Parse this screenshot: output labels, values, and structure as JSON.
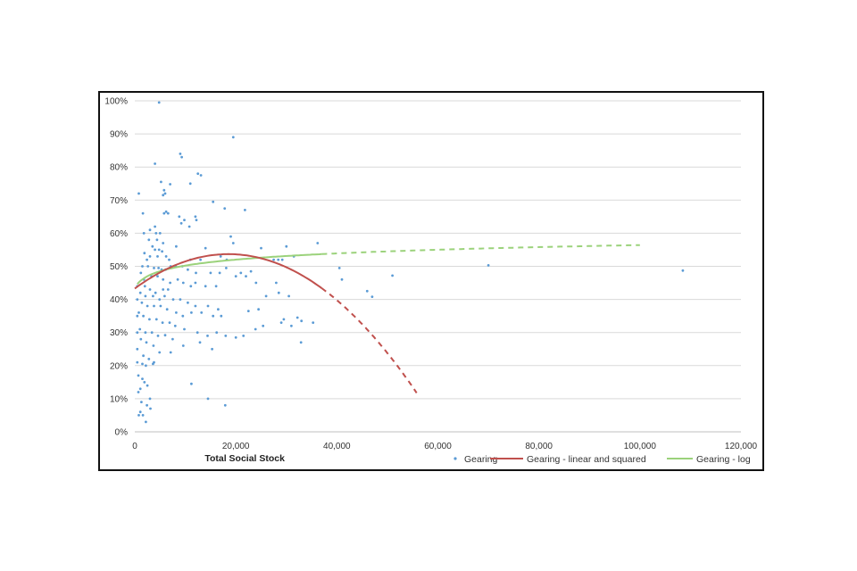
{
  "chart_data": {
    "type": "scatter",
    "title": "",
    "xlabel": "Total Social Stock",
    "ylabel": "",
    "xlim": [
      0,
      120000
    ],
    "ylim": [
      0,
      100
    ],
    "x_ticks": [
      "0",
      "20,000",
      "40,000",
      "60,000",
      "80,000",
      "100,000",
      "120,000"
    ],
    "y_ticks": [
      "0%",
      "10%",
      "20%",
      "30%",
      "40%",
      "50%",
      "60%",
      "70%",
      "80%",
      "90%",
      "100%"
    ],
    "grid": "horizontal",
    "legend_position": "bottom-right",
    "colors": {
      "points": "#5b9bd5",
      "quadratic": "#c0504d",
      "log": "#9bd27b"
    },
    "series": [
      {
        "name": "Gearing",
        "kind": "scatter",
        "points": [
          [
            4800,
            99.5
          ],
          [
            19500,
            89
          ],
          [
            9000,
            84
          ],
          [
            9300,
            83
          ],
          [
            4000,
            81
          ],
          [
            12500,
            78
          ],
          [
            13100,
            77.5
          ],
          [
            5200,
            75.5
          ],
          [
            5800,
            73
          ],
          [
            6000,
            72
          ],
          [
            5600,
            71.5
          ],
          [
            800,
            72
          ],
          [
            11000,
            75
          ],
          [
            7000,
            74.8
          ],
          [
            15500,
            69.5
          ],
          [
            17800,
            67.5
          ],
          [
            21800,
            67
          ],
          [
            1600,
            66
          ],
          [
            5800,
            66
          ],
          [
            6200,
            66.5
          ],
          [
            6600,
            66
          ],
          [
            8800,
            65
          ],
          [
            9800,
            64
          ],
          [
            12000,
            65
          ],
          [
            12200,
            64
          ],
          [
            10800,
            62
          ],
          [
            9200,
            63
          ],
          [
            4000,
            62
          ],
          [
            3000,
            61
          ],
          [
            4200,
            60
          ],
          [
            5000,
            60
          ],
          [
            1800,
            60
          ],
          [
            2800,
            58
          ],
          [
            4400,
            58
          ],
          [
            5600,
            57
          ],
          [
            19000,
            59
          ],
          [
            19500,
            57
          ],
          [
            25000,
            55.5
          ],
          [
            30000,
            56
          ],
          [
            36200,
            57
          ],
          [
            14000,
            55.5
          ],
          [
            8200,
            56
          ],
          [
            3500,
            56
          ],
          [
            4000,
            55
          ],
          [
            4800,
            55
          ],
          [
            5400,
            54.5
          ],
          [
            1900,
            54
          ],
          [
            3000,
            53
          ],
          [
            4500,
            53
          ],
          [
            6200,
            53
          ],
          [
            6800,
            52
          ],
          [
            2400,
            52
          ],
          [
            11000,
            52
          ],
          [
            13000,
            52
          ],
          [
            17000,
            53
          ],
          [
            18200,
            52
          ],
          [
            27500,
            52
          ],
          [
            28400,
            52
          ],
          [
            29200,
            52
          ],
          [
            31500,
            53
          ],
          [
            1500,
            50
          ],
          [
            2600,
            50
          ],
          [
            3800,
            49.5
          ],
          [
            4700,
            49.5
          ],
          [
            5300,
            49
          ],
          [
            6100,
            49
          ],
          [
            7100,
            50
          ],
          [
            8100,
            50
          ],
          [
            9400,
            50
          ],
          [
            10500,
            49
          ],
          [
            12100,
            48
          ],
          [
            15000,
            48
          ],
          [
            16800,
            48
          ],
          [
            18100,
            49.5
          ],
          [
            21000,
            48
          ],
          [
            23000,
            48.5
          ],
          [
            22000,
            47
          ],
          [
            24000,
            45
          ],
          [
            1200,
            48
          ],
          [
            1800,
            46
          ],
          [
            3300,
            47
          ],
          [
            4500,
            47
          ],
          [
            5600,
            46
          ],
          [
            7000,
            45
          ],
          [
            8500,
            46
          ],
          [
            9600,
            45
          ],
          [
            11100,
            44
          ],
          [
            12000,
            45
          ],
          [
            14000,
            44
          ],
          [
            16100,
            44
          ],
          [
            20000,
            47
          ],
          [
            40500,
            49.5
          ],
          [
            41000,
            46
          ],
          [
            51000,
            47.2
          ],
          [
            70000,
            50.3
          ],
          [
            108500,
            48.7
          ],
          [
            46000,
            42.5
          ],
          [
            47000,
            40.8
          ],
          [
            28000,
            45
          ],
          [
            2000,
            44
          ],
          [
            3000,
            43
          ],
          [
            4100,
            42
          ],
          [
            5600,
            43
          ],
          [
            6600,
            43
          ],
          [
            1100,
            42
          ],
          [
            2100,
            41
          ],
          [
            3600,
            41
          ],
          [
            4900,
            40
          ],
          [
            5900,
            41
          ],
          [
            7600,
            40
          ],
          [
            9000,
            40
          ],
          [
            10500,
            39
          ],
          [
            12000,
            38
          ],
          [
            14500,
            38
          ],
          [
            16500,
            37
          ],
          [
            26000,
            41
          ],
          [
            28500,
            42
          ],
          [
            30500,
            41
          ],
          [
            1400,
            39
          ],
          [
            2500,
            38
          ],
          [
            3800,
            38
          ],
          [
            5100,
            38
          ],
          [
            6400,
            37
          ],
          [
            8200,
            36
          ],
          [
            9500,
            35
          ],
          [
            11200,
            36
          ],
          [
            13200,
            36
          ],
          [
            15500,
            35
          ],
          [
            17100,
            35
          ],
          [
            22500,
            36.5
          ],
          [
            24500,
            37
          ],
          [
            29500,
            34
          ],
          [
            32200,
            34.5
          ],
          [
            33000,
            33.5
          ],
          [
            35300,
            33
          ],
          [
            800,
            36
          ],
          [
            1700,
            35
          ],
          [
            2900,
            34
          ],
          [
            4300,
            34
          ],
          [
            5500,
            33
          ],
          [
            6900,
            33
          ],
          [
            8000,
            32
          ],
          [
            9800,
            31
          ],
          [
            12400,
            30
          ],
          [
            14400,
            29
          ],
          [
            16200,
            30
          ],
          [
            18000,
            29
          ],
          [
            20000,
            28.5
          ],
          [
            21500,
            29
          ],
          [
            23900,
            31
          ],
          [
            25400,
            32
          ],
          [
            29000,
            33
          ],
          [
            31000,
            32
          ],
          [
            32900,
            27
          ],
          [
            1000,
            31
          ],
          [
            2100,
            30
          ],
          [
            3400,
            30
          ],
          [
            4600,
            29
          ],
          [
            6000,
            29.2
          ],
          [
            7500,
            28
          ],
          [
            9600,
            26
          ],
          [
            12900,
            27
          ],
          [
            15300,
            25
          ],
          [
            1200,
            28
          ],
          [
            2300,
            27
          ],
          [
            3700,
            26
          ],
          [
            4900,
            24
          ],
          [
            7100,
            24
          ],
          [
            1700,
            23
          ],
          [
            2800,
            22
          ],
          [
            3800,
            21
          ],
          [
            500,
            21
          ],
          [
            1500,
            20.5
          ],
          [
            2200,
            20
          ],
          [
            3600,
            20.5
          ],
          [
            11200,
            14.5
          ],
          [
            14500,
            10
          ],
          [
            17900,
            8
          ],
          [
            700,
            17
          ],
          [
            1500,
            16
          ],
          [
            1900,
            15
          ],
          [
            2500,
            14
          ],
          [
            1100,
            13
          ],
          [
            700,
            12
          ],
          [
            3000,
            10
          ],
          [
            1300,
            9
          ],
          [
            2400,
            8
          ],
          [
            1100,
            6
          ],
          [
            800,
            5
          ],
          [
            1600,
            5
          ],
          [
            2200,
            3
          ],
          [
            3100,
            7
          ],
          [
            500,
            44
          ],
          [
            500,
            40
          ],
          [
            500,
            35
          ],
          [
            500,
            30
          ],
          [
            500,
            25
          ]
        ]
      },
      {
        "name": "Gearing - linear and squared",
        "kind": "line",
        "formula": "quadratic",
        "coefficients": {
          "a": 43.3,
          "b": 0.00112,
          "c": -3.02e-08
        },
        "solid_range": [
          0,
          37000
        ],
        "dashed_range": [
          37000,
          55800
        ]
      },
      {
        "name": "Gearing - log",
        "kind": "line",
        "formula": "logarithmic",
        "coefficients": {
          "a": 43.5,
          "b": 2.8
        },
        "solid_range": [
          500,
          37000
        ],
        "dashed_range": [
          37000,
          100000
        ]
      }
    ]
  }
}
